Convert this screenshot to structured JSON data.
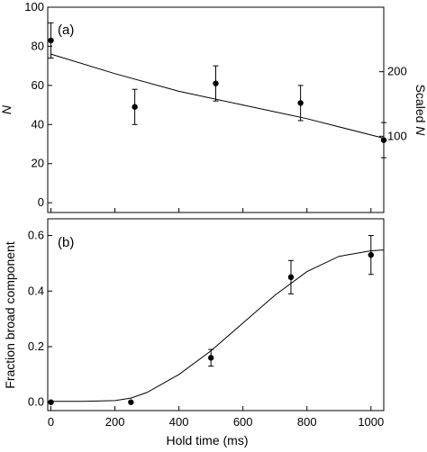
{
  "chart_data": [
    {
      "type": "scatter",
      "panel_label": "(a)",
      "xlim": [
        -10,
        1040
      ],
      "ylim": [
        -5,
        100
      ],
      "ylabel": "N",
      "yticks": [
        "0",
        "20",
        "40",
        "60",
        "80",
        "100"
      ],
      "ytick_values": [
        0,
        20,
        40,
        60,
        80,
        100
      ],
      "right_axis": {
        "label_prefix": "Scaled ",
        "label_var": "N",
        "ticks": [
          "100",
          "200"
        ],
        "tick_values": [
          34,
          67
        ]
      },
      "points": [
        {
          "x": 0,
          "y": 83,
          "err": 9
        },
        {
          "x": 262,
          "y": 49,
          "err": 9
        },
        {
          "x": 515,
          "y": 61,
          "err": 9
        },
        {
          "x": 780,
          "y": 51,
          "err": 9
        },
        {
          "x": 1040,
          "y": 32,
          "err": 9
        }
      ],
      "fit": {
        "x": [
          0,
          200,
          400,
          600,
          800,
          1040
        ],
        "y": [
          76,
          66,
          57,
          50,
          43,
          33
        ]
      }
    },
    {
      "type": "scatter",
      "panel_label": "(b)",
      "xlim": [
        -10,
        1040
      ],
      "ylim": [
        -0.03,
        0.66
      ],
      "xlabel": "Hold time (ms)",
      "ylabel": "Fraction broad component",
      "xticks": [
        "0",
        "200",
        "400",
        "600",
        "800",
        "1000"
      ],
      "xtick_values": [
        0,
        200,
        400,
        600,
        800,
        1000
      ],
      "yticks": [
        "0.0",
        "0.2",
        "0.4",
        "0.6"
      ],
      "ytick_values": [
        0,
        0.2,
        0.4,
        0.6
      ],
      "points": [
        {
          "x": 0,
          "y": 0.0,
          "err": 0
        },
        {
          "x": 250,
          "y": 0.0,
          "err": 0
        },
        {
          "x": 500,
          "y": 0.16,
          "err": 0.03
        },
        {
          "x": 750,
          "y": 0.45,
          "err": 0.06
        },
        {
          "x": 1000,
          "y": 0.53,
          "err": 0.07
        }
      ],
      "fit": {
        "x": [
          0,
          100,
          200,
          250,
          300,
          400,
          500,
          600,
          700,
          800,
          900,
          1000,
          1040
        ],
        "y": [
          0.003,
          0.003,
          0.006,
          0.015,
          0.035,
          0.1,
          0.185,
          0.285,
          0.385,
          0.47,
          0.525,
          0.545,
          0.548
        ]
      }
    }
  ]
}
